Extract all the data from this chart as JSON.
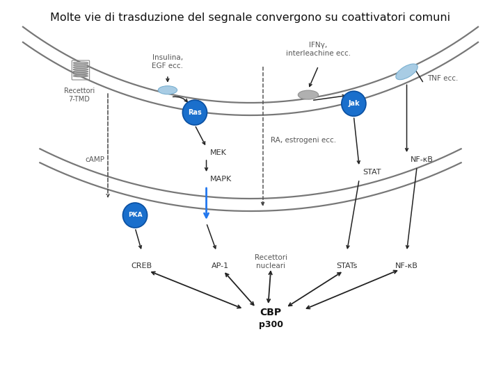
{
  "title": "Molte vie di trasduzione del segnale convergono su coattivatori comuni",
  "title_fontsize": 11.5,
  "bg_color": "#ffffff",
  "membrane_color": "#777777",
  "arrow_color": "#222222",
  "blue_circle_color": "#1a6fcc",
  "blue_circle_edge": "#0a4fa0",
  "blue_ellipse_color": "#8bbfdf",
  "gray_ellipse_color": "#999999",
  "blue_arrow_color": "#2277ee",
  "dashed_line_color": "#555555",
  "labels": {
    "receptor_7tmd": "Recettori\n7-TMD",
    "insulina": "Insulina,\nEGF ecc.",
    "ifn": "IFNγ,\ninterleachine ecc.",
    "tnf": "TNF ecc.",
    "camp": "cAMP",
    "mek": "MEK",
    "mapk": "MAPK",
    "ra": "RA, estrogeni ecc.",
    "stat": "STAT",
    "nfkb_top": "NF-κB",
    "creb": "CREB",
    "ap1": "AP-1",
    "recettori_nucleari": "Recettori\nnucleari",
    "stats_bottom": "STATs",
    "nfkb_bottom": "NF-κB",
    "cbp": "CBP",
    "p300": "p300",
    "ras": "Ras",
    "jak": "Jak",
    "pka": "PKA"
  }
}
